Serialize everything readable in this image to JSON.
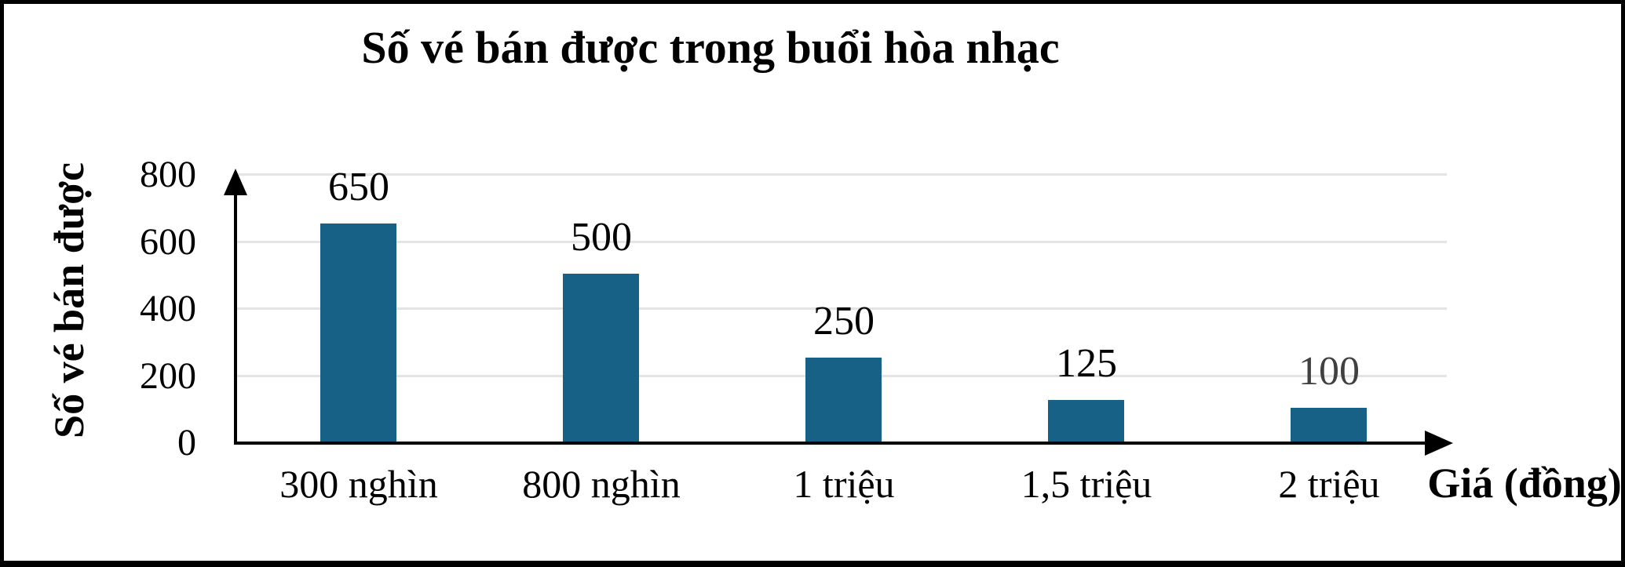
{
  "chart_data": {
    "type": "bar",
    "title": "Số vé bán được trong buổi hòa nhạc",
    "xlabel": "Giá (đồng)",
    "ylabel": "Số vé bán được",
    "categories": [
      "300 nghìn",
      "800 nghìn",
      "1 triệu",
      "1,5 triệu",
      "2 triệu"
    ],
    "values": [
      650,
      500,
      250,
      125,
      100
    ],
    "yticks": [
      0,
      200,
      400,
      600,
      800
    ],
    "ylim": [
      0,
      800
    ],
    "grid": true,
    "legend": "none",
    "bar_color": "#176187",
    "axis_color": "#000000",
    "gridline_color": "#e4e4e4",
    "value_label_colors": [
      "#000000",
      "#000000",
      "#000000",
      "#000000",
      "#404040"
    ]
  }
}
